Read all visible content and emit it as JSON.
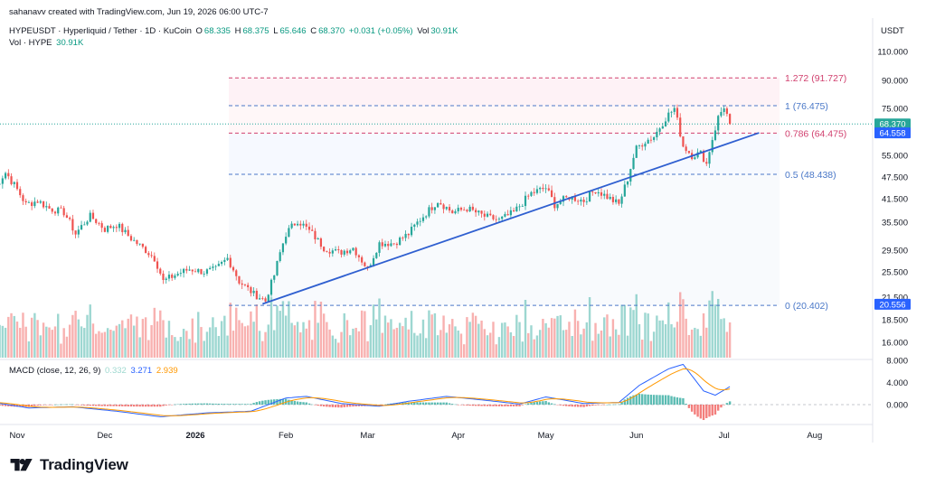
{
  "header": {
    "credit": "sahanavv created with TradingView.com, Jun 19, 2026 06:00 UTC-7",
    "symbol_line": "HYPEUSDT · Hyperliquid / Tether · 1D · KuCoin",
    "ohlc": {
      "o_label": "O",
      "o": "68.335",
      "h_label": "H",
      "h": "68.375",
      "l_label": "L",
      "l": "65.646",
      "c_label": "C",
      "c": "68.370",
      "change": "+0.031 (+0.05%)",
      "vol_label": "Vol",
      "vol": "30.91K"
    },
    "vol_line_label": "Vol · HYPE",
    "vol_line_value": "30.91K",
    "macd_label": "MACD (close, 12, 26, 9)",
    "macd_values": [
      "0.332",
      "3.271",
      "2.939"
    ]
  },
  "currency": "USDT",
  "logo_text": "TradingView",
  "colors": {
    "up": "#26a69a",
    "down": "#ef5350",
    "macd_line": "#2962ff",
    "signal_line": "#ff9800",
    "trendline": "#2f5fd0",
    "fib_red": "#d1416f",
    "fib_blue": "#4a78c8",
    "price_line": "#26a69a"
  },
  "chart_data": {
    "type": "candlestick",
    "price_axis_ticks": [
      "110.000",
      "90.000",
      "75.000",
      "65.000",
      "55.000",
      "47.500",
      "41.500",
      "35.500",
      "29.500",
      "25.500",
      "21.500",
      "18.500",
      "16.000"
    ],
    "macd_axis_ticks": [
      "8.000",
      "4.000",
      "0.000"
    ],
    "x_labels": [
      "Nov",
      "Dec",
      "2026",
      "Feb",
      "Mar",
      "Apr",
      "May",
      "Jun",
      "Jul",
      "Aug"
    ],
    "price_badges": [
      {
        "value": "68.370",
        "color": "#26a69a"
      },
      {
        "value": "64.558",
        "color": "#2962ff"
      },
      {
        "value": "20.556",
        "color": "#2962ff"
      }
    ],
    "fib_levels": [
      {
        "ratio": "1.272",
        "price": 91.727,
        "label": "1.272 (91.727)",
        "color": "#d1416f"
      },
      {
        "ratio": "1",
        "price": 76.475,
        "label": "1 (76.475)",
        "color": "#4a78c8"
      },
      {
        "ratio": "0.786",
        "price": 64.475,
        "label": "0.786 (64.475)",
        "color": "#d1416f"
      },
      {
        "ratio": "0.5",
        "price": 48.438,
        "label": "0.5 (48.438)",
        "color": "#4a78c8"
      },
      {
        "ratio": "0",
        "price": 20.402,
        "label": "0 (20.402)",
        "color": "#4a78c8"
      }
    ],
    "trendline": {
      "from": {
        "date": "2026-01-24",
        "price": 20.6
      },
      "to": {
        "date": "2026-07-13",
        "price": 64.6
      }
    },
    "last_price": 68.37,
    "anchors": [
      [
        "2025-10-24",
        44
      ],
      [
        "2025-10-28",
        49
      ],
      [
        "2025-11-01",
        44
      ],
      [
        "2025-11-04",
        40
      ],
      [
        "2025-11-08",
        41
      ],
      [
        "2025-11-12",
        39
      ],
      [
        "2025-11-17",
        38
      ],
      [
        "2025-11-21",
        33
      ],
      [
        "2025-11-26",
        37
      ],
      [
        "2025-12-01",
        34
      ],
      [
        "2025-12-05",
        35
      ],
      [
        "2025-12-10",
        32
      ],
      [
        "2025-12-14",
        30
      ],
      [
        "2025-12-18",
        28
      ],
      [
        "2025-12-21",
        24
      ],
      [
        "2025-12-25",
        25
      ],
      [
        "2025-12-30",
        26
      ],
      [
        "2026-01-04",
        25.5
      ],
      [
        "2026-01-08",
        26
      ],
      [
        "2026-01-12",
        28
      ],
      [
        "2026-01-16",
        24
      ],
      [
        "2026-01-21",
        22
      ],
      [
        "2026-01-25",
        21
      ],
      [
        "2026-01-28",
        25
      ],
      [
        "2026-02-01",
        33
      ],
      [
        "2026-02-05",
        36
      ],
      [
        "2026-02-10",
        33
      ],
      [
        "2026-02-14",
        30
      ],
      [
        "2026-02-19",
        29
      ],
      [
        "2026-02-24",
        30
      ],
      [
        "2026-03-01",
        26
      ],
      [
        "2026-03-05",
        31
      ],
      [
        "2026-03-10",
        31
      ],
      [
        "2026-03-15",
        33
      ],
      [
        "2026-03-20",
        37
      ],
      [
        "2026-03-25",
        41
      ],
      [
        "2026-03-30",
        38
      ],
      [
        "2026-04-04",
        39
      ],
      [
        "2026-04-10",
        37
      ],
      [
        "2026-04-15",
        36
      ],
      [
        "2026-04-20",
        38
      ],
      [
        "2026-04-26",
        43
      ],
      [
        "2026-05-01",
        44.5
      ],
      [
        "2026-05-04",
        40
      ],
      [
        "2026-05-09",
        42
      ],
      [
        "2026-05-14",
        41
      ],
      [
        "2026-05-18",
        44
      ],
      [
        "2026-05-22",
        42
      ],
      [
        "2026-05-26",
        40
      ],
      [
        "2026-05-29",
        47
      ],
      [
        "2026-06-01",
        58
      ],
      [
        "2026-06-04",
        61
      ],
      [
        "2026-06-07",
        63
      ],
      [
        "2026-06-11",
        71
      ],
      [
        "2026-06-14",
        75
      ],
      [
        "2026-06-17",
        59
      ],
      [
        "2026-06-20",
        55
      ],
      [
        "2026-06-23",
        56
      ],
      [
        "2026-06-25",
        52
      ],
      [
        "2026-06-27",
        62
      ],
      [
        "2026-06-29",
        71
      ],
      [
        "2026-07-01",
        76
      ],
      [
        "2026-07-03",
        68.37
      ]
    ],
    "macd_anchors": [
      [
        "2025-10-24",
        0.4
      ],
      [
        "2025-11-05",
        -0.6
      ],
      [
        "2025-11-20",
        -0.4
      ],
      [
        "2025-12-05",
        -1.2
      ],
      [
        "2025-12-20",
        -2.2
      ],
      [
        "2026-01-05",
        -1.5
      ],
      [
        "2026-01-20",
        -1.2
      ],
      [
        "2026-02-01",
        1.2
      ],
      [
        "2026-02-08",
        1.5
      ],
      [
        "2026-02-20",
        0.2
      ],
      [
        "2026-03-05",
        -0.3
      ],
      [
        "2026-03-15",
        0.6
      ],
      [
        "2026-03-28",
        1.5
      ],
      [
        "2026-04-10",
        0.8
      ],
      [
        "2026-04-22",
        0.1
      ],
      [
        "2026-05-01",
        1.4
      ],
      [
        "2026-05-14",
        0.2
      ],
      [
        "2026-05-26",
        0.4
      ],
      [
        "2026-06-02",
        3.5
      ],
      [
        "2026-06-12",
        6.5
      ],
      [
        "2026-06-17",
        7.3
      ],
      [
        "2026-06-24",
        2.5
      ],
      [
        "2026-06-28",
        1.7
      ],
      [
        "2026-07-03",
        3.271
      ]
    ]
  }
}
